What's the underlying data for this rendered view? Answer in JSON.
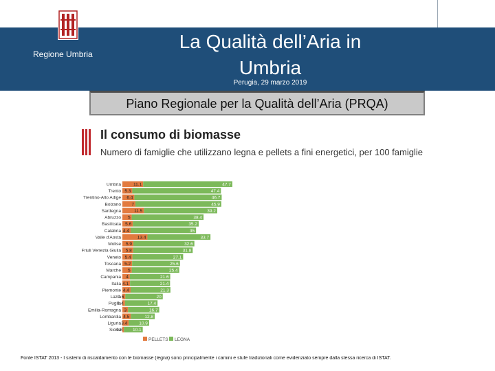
{
  "header": {
    "region": "Regione Umbria",
    "title_line1": "La Qualità dell’Aria in",
    "title_line2": "Umbria",
    "date": "Perugia, 29 marzo 2019",
    "plan": "Piano Regionale per la Qualità dell’Aria (PRQA)"
  },
  "colors": {
    "header_blue": "#1f4e79",
    "pellets": "#e27a3f",
    "legna": "#7cb95a"
  },
  "chart_data": {
    "type": "bar",
    "title": "Il consumo di biomasse",
    "subtitle": "Numero di famiglie che utilizzano legna e pellets a fini energetici, per 100 famiglie",
    "categories": [
      "Umbria",
      "Trento",
      "Trentino-Alto Adige",
      "Bolzano",
      "Sardegna",
      "Abruzzo",
      "Basilicata",
      "Calabria",
      "Valle d'Aosta",
      "Molise",
      "Friuli Venezia Giulia",
      "Veneto",
      "Toscana",
      "Marche",
      "Campania",
      "Italia",
      "Piemonte",
      "Lazio",
      "Puglia",
      "Emilia-Romagna",
      "Lombardia",
      "Liguria",
      "Sicilia"
    ],
    "series": [
      {
        "name": "PELLETS",
        "values": [
          11.1,
          5.3,
          6.4,
          7.0,
          11.5,
          5.0,
          5.6,
          4.4,
          13.4,
          5.9,
          5.8,
          5.4,
          5.2,
          5.0,
          4.0,
          4.1,
          4.4,
          1.6,
          1.4,
          3.0,
          4.5,
          3.4,
          0.8
        ]
      },
      {
        "name": "LEGNA",
        "values": [
          47.7,
          47.4,
          46.7,
          45.9,
          39.2,
          38.4,
          35.2,
          35.0,
          33.7,
          32.6,
          31.8,
          27.1,
          25.6,
          25.4,
          21.6,
          21.4,
          21.3,
          20.0,
          17.4,
          16.7,
          12.8,
          10.9,
          10.1
        ]
      }
    ],
    "legend": [
      "PELLETS",
      "LEGNA"
    ],
    "legend_position": "bottom-left"
  },
  "footnote": "Fonte ISTAT 2013 - I sistemi di riscaldamento con le biomasse (legna) sono principalmente i camini e stufe tradizionali come evidenziato sempre dalla stessa ricerca di ISTAT."
}
